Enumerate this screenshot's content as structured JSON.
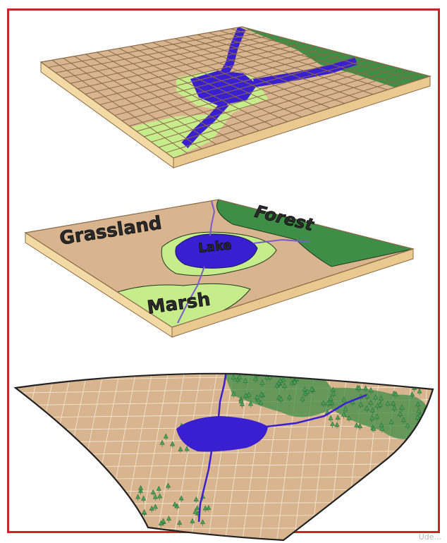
{
  "colors": {
    "frame": "#c62828",
    "land": "#d8b58f",
    "grid_line": "#8a6a48",
    "water": "#3a1fd0",
    "marsh": "#c7ec8c",
    "forest": "#3e8e47",
    "slab_edge": "#f3d9a4",
    "tree": "#4ba35a"
  },
  "layers": [
    {
      "name": "raster-layer"
    },
    {
      "name": "vector-layer",
      "labels": {
        "grassland": "Grassland",
        "forest": "Forest",
        "lake": "Lake",
        "marsh": "Marsh"
      }
    },
    {
      "name": "terrain-layer"
    }
  ],
  "watermark": "Ude..."
}
